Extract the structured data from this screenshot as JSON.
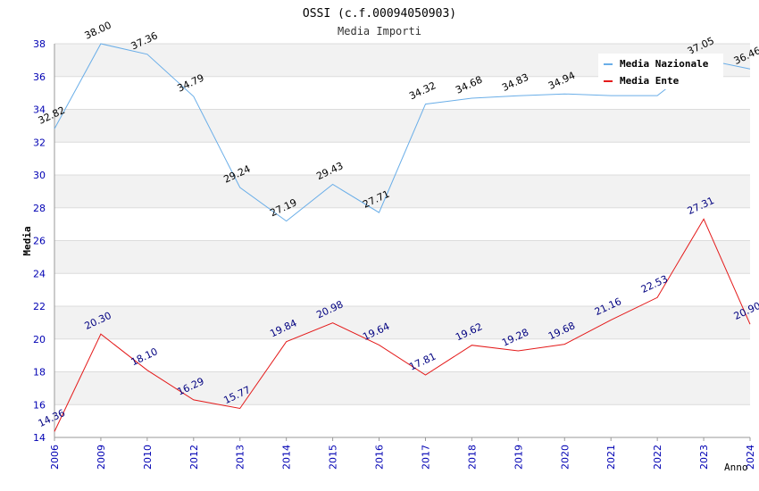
{
  "chart_data": {
    "type": "line",
    "title": "OSSI (c.f.00094050903)",
    "subtitle": "Media Importi",
    "xlabel": "Anno",
    "ylabel": "Media",
    "ylim": [
      14,
      38
    ],
    "yticks": [
      14,
      16,
      18,
      20,
      22,
      24,
      26,
      28,
      30,
      32,
      34,
      36,
      38
    ],
    "categories": [
      "2006",
      "2009",
      "2010",
      "2012",
      "2013",
      "2014",
      "2015",
      "2016",
      "2017",
      "2018",
      "2019",
      "2020",
      "2021",
      "2022",
      "2023",
      "2024"
    ],
    "legend_position": "top-right",
    "grid": true,
    "series": [
      {
        "name": "Media Nazionale",
        "color": "#6aaee8",
        "label_color": "#000000",
        "values": [
          32.82,
          38.0,
          37.36,
          34.79,
          29.24,
          27.19,
          29.43,
          27.71,
          34.32,
          34.68,
          34.83,
          34.94,
          34.84,
          34.84,
          37.05,
          36.46
        ],
        "labels": [
          "32.82",
          "38.00",
          "37.36",
          "34.79",
          "29.24",
          "27.19",
          "29.43",
          "27.71",
          "34.32",
          "34.68",
          "34.83",
          "34.94",
          "",
          "",
          "37.05",
          "36.46"
        ]
      },
      {
        "name": "Media Ente",
        "color": "#e41a1a",
        "label_color": "#000080",
        "values": [
          14.36,
          20.3,
          18.1,
          16.29,
          15.77,
          19.84,
          20.98,
          19.64,
          17.81,
          19.62,
          19.28,
          19.68,
          21.16,
          22.53,
          27.31,
          20.9
        ],
        "labels": [
          "14.36",
          "20.30",
          "18.10",
          "16.29",
          "15.77",
          "19.84",
          "20.98",
          "19.64",
          "17.81",
          "19.62",
          "19.28",
          "19.68",
          "21.16",
          "22.53",
          "27.31",
          "20.90"
        ]
      }
    ]
  }
}
